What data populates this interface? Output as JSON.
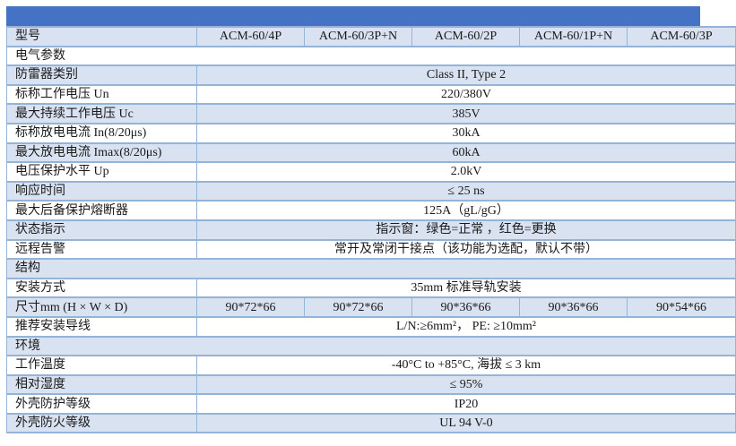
{
  "colors": {
    "header_bar": "#4472c4",
    "shaded_row": "#d9e2f1",
    "border": "#95b3d7",
    "text": "#1a1a1a",
    "background": "#ffffff"
  },
  "table": {
    "header": {
      "label": "型号",
      "models": [
        "ACM-60/4P",
        "ACM-60/3P+N",
        "ACM-60/2P",
        "ACM-60/1P+N",
        "ACM-60/3P"
      ]
    },
    "rows": [
      {
        "type": "section",
        "label": "电气参数"
      },
      {
        "type": "spec",
        "label": "防雷器类别",
        "value": "Class II, Type 2"
      },
      {
        "type": "spec",
        "label": "标称工作电压 Un",
        "value": "220/380V"
      },
      {
        "type": "spec",
        "label": "最大持续工作电压 Uc",
        "value": "385V"
      },
      {
        "type": "spec",
        "label": "标称放电电流 In(8/20μs)",
        "value": "30kA"
      },
      {
        "type": "spec",
        "label": "最大放电电流 Imax(8/20μs)",
        "value": "60kA"
      },
      {
        "type": "spec",
        "label": "电压保护水平 Up",
        "value": "2.0kV"
      },
      {
        "type": "spec",
        "label": "响应时间",
        "value": "≤ 25 ns"
      },
      {
        "type": "spec",
        "label": "最大后备保护熔断器",
        "value": "125A（gL/gG）"
      },
      {
        "type": "spec",
        "label": "状态指示",
        "value": "指示窗：绿色=正常 ，红色=更换"
      },
      {
        "type": "spec",
        "label": "远程告警",
        "value": "常开及常闭干接点（该功能为选配，默认不带）"
      },
      {
        "type": "section",
        "label": "结构"
      },
      {
        "type": "spec",
        "label": "安装方式",
        "value": "35mm 标准导轨安装"
      },
      {
        "type": "multi",
        "label": "尺寸mm (H × W × D)",
        "values": [
          "90*72*66",
          "90*72*66",
          "90*36*66",
          "90*36*66",
          "90*54*66"
        ]
      },
      {
        "type": "spec",
        "label": "推荐安装导线",
        "value": "L/N:≥6mm²， PE: ≥10mm²"
      },
      {
        "type": "section",
        "label": "环境"
      },
      {
        "type": "spec",
        "label": "工作温度",
        "value": "-40°C to +85°C, 海拔 ≤ 3 km"
      },
      {
        "type": "spec",
        "label": "相对湿度",
        "value": "≤ 95%"
      },
      {
        "type": "spec",
        "label": "外壳防护等级",
        "value": "IP20"
      },
      {
        "type": "spec",
        "label": "外壳防火等级",
        "value": "UL 94 V-0"
      }
    ]
  }
}
